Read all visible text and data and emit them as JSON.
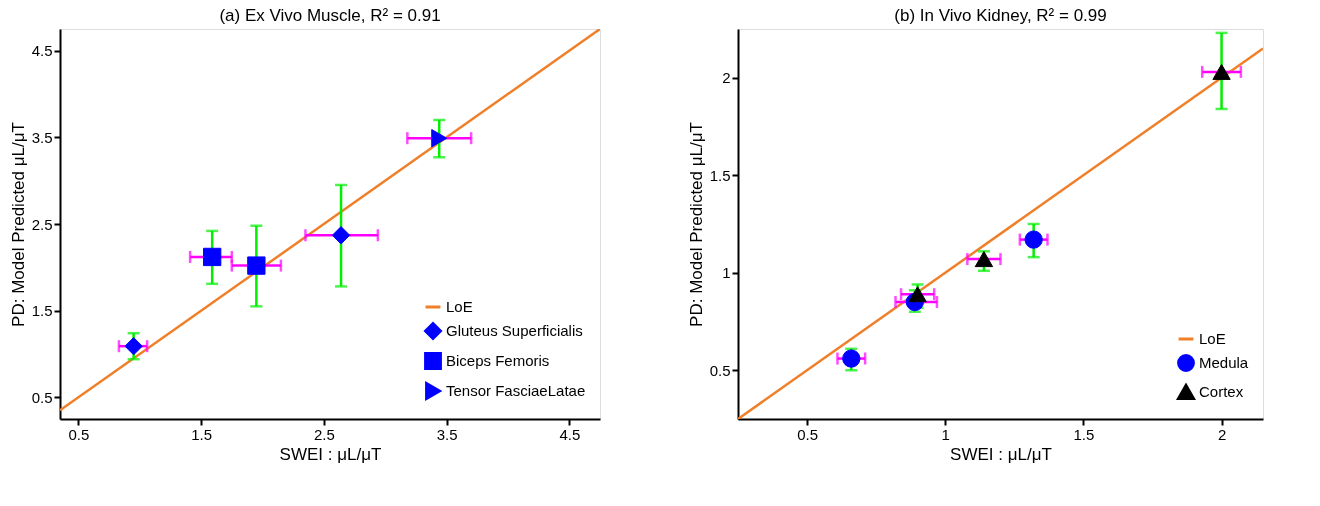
{
  "chart_data": [
    {
      "type": "scatter",
      "title": "(a) Ex Vivo Muscle, R² = 0.91",
      "xlabel": "SWEI : μL/μT",
      "ylabel": "PD: Model Predicted μL/μT",
      "xlim": [
        0.35,
        4.75
      ],
      "ylim": [
        0.25,
        4.75
      ],
      "xticks": [
        0.5,
        1.5,
        2.5,
        3.5,
        4.5
      ],
      "yticks": [
        0.5,
        1.5,
        2.5,
        3.5,
        4.5
      ],
      "grid": false,
      "legend": "bottom right",
      "series": [
        {
          "name": "LoE",
          "type": "line",
          "color": "#f07f2a",
          "x": [
            0.35,
            4.75
          ],
          "values": [
            0.35,
            4.75
          ]
        },
        {
          "name": "Gluteus Superficialis",
          "marker": "diamond",
          "color": "#0000ff",
          "x": [
            0.95,
            2.64
          ],
          "values": [
            1.09,
            2.37
          ],
          "errors": [
            [
              0.94,
              1.24
            ],
            [
              1.78,
              2.95
            ]
          ],
          "xerrors": [
            [
              0.83,
              1.06
            ],
            [
              2.35,
              2.94
            ]
          ]
        },
        {
          "name": "Biceps Femoris",
          "marker": "square",
          "color": "#0000ff",
          "x": [
            1.59,
            1.95
          ],
          "values": [
            2.12,
            2.02
          ],
          "errors": [
            [
              1.81,
              2.42
            ],
            [
              1.55,
              2.48
            ]
          ],
          "xerrors": [
            [
              1.41,
              1.75
            ],
            [
              1.75,
              2.15
            ]
          ]
        },
        {
          "name": "Tensor FasciaeLatae",
          "marker": "triangle-right",
          "color": "#0000ff",
          "x": [
            3.44
          ],
          "values": [
            3.49
          ],
          "errors": [
            [
              3.27,
              3.7
            ]
          ],
          "xerrors": [
            [
              3.18,
              3.7
            ]
          ]
        }
      ]
    },
    {
      "type": "scatter",
      "title": "(b) In Vivo Kidney, R² = 0.99",
      "xlabel": "SWEI : μL/μT",
      "ylabel": "PD: Model Predicted μL/μT",
      "xlim": [
        0.25,
        2.15
      ],
      "ylim": [
        0.25,
        2.25
      ],
      "xticks": [
        0.5,
        1,
        1.5,
        2
      ],
      "yticks": [
        0.5,
        1,
        1.5,
        2
      ],
      "grid": false,
      "legend": "bottom right",
      "series": [
        {
          "name": "LoE",
          "type": "line",
          "color": "#f07f2a",
          "x": [
            0.25,
            2.15
          ],
          "values": [
            0.25,
            2.15
          ]
        },
        {
          "name": "Medula",
          "marker": "circle",
          "color": "#0000ff",
          "x": [
            0.66,
            0.89,
            1.32
          ],
          "values": [
            0.56,
            0.85,
            1.17
          ],
          "errors": [
            [
              0.5,
              0.61
            ],
            [
              0.8,
              0.91
            ],
            [
              1.08,
              1.25
            ]
          ],
          "xerrors": [
            [
              0.61,
              0.71
            ],
            [
              0.82,
              0.97
            ],
            [
              1.27,
              1.37
            ]
          ]
        },
        {
          "name": "Cortex",
          "marker": "triangle",
          "color": "#000000",
          "x": [
            0.9,
            1.14,
            2.0
          ],
          "values": [
            0.89,
            1.07,
            2.03
          ],
          "errors": [
            [
              0.82,
              0.94
            ],
            [
              1.01,
              1.11
            ],
            [
              1.84,
              2.23
            ]
          ],
          "xerrors": [
            [
              0.84,
              0.96
            ],
            [
              1.08,
              1.2
            ],
            [
              1.93,
              2.07
            ]
          ]
        }
      ]
    }
  ]
}
